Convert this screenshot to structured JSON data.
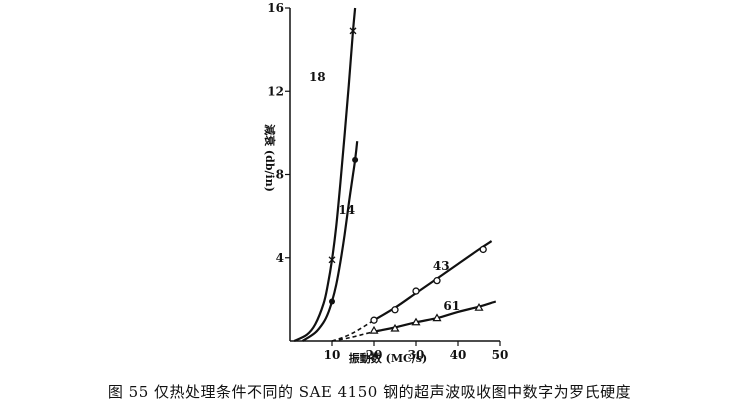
{
  "caption": "图 55  仅热处理条件不同的 SAE 4150 钢的超声波吸收图中数字为罗氏硬度",
  "chart_data": {
    "type": "line",
    "xlabel": "振動数 (MC/s)",
    "ylabel": "減衰 (db/in)",
    "xlim": [
      0,
      50
    ],
    "ylim": [
      0,
      16
    ],
    "x_ticks": [
      "10",
      "20",
      "30",
      "40",
      "50"
    ],
    "y_ticks": [
      "4",
      "8",
      "12",
      "16"
    ],
    "grid": false,
    "series": [
      {
        "name": "18",
        "marker": "x",
        "points": [
          [
            10,
            3.9
          ],
          [
            15,
            14.9
          ]
        ],
        "curve": [
          [
            1,
            0.0
          ],
          [
            4,
            0.3
          ],
          [
            6,
            0.8
          ],
          [
            8,
            1.8
          ],
          [
            9,
            2.7
          ],
          [
            10,
            3.9
          ],
          [
            11,
            5.5
          ],
          [
            12,
            7.6
          ],
          [
            13,
            9.9
          ],
          [
            14,
            12.3
          ],
          [
            15,
            14.9
          ],
          [
            15.5,
            16.0
          ]
        ]
      },
      {
        "name": "14",
        "marker": "filled-circle",
        "points": [
          [
            10,
            1.9
          ],
          [
            15.5,
            8.7
          ]
        ],
        "curve": [
          [
            3,
            0.0
          ],
          [
            6,
            0.4
          ],
          [
            8,
            0.9
          ],
          [
            9,
            1.3
          ],
          [
            10,
            1.9
          ],
          [
            11,
            2.7
          ],
          [
            12,
            3.8
          ],
          [
            13,
            5.1
          ],
          [
            14,
            6.6
          ],
          [
            15,
            8.0
          ],
          [
            15.5,
            8.7
          ],
          [
            16,
            9.6
          ]
        ]
      },
      {
        "name": "43",
        "marker": "open-circle",
        "points": [
          [
            20,
            1.0
          ],
          [
            25,
            1.5
          ],
          [
            30,
            2.4
          ],
          [
            35,
            2.9
          ],
          [
            46,
            4.4
          ]
        ],
        "curve": [
          [
            10,
            0.0
          ],
          [
            13,
            0.2
          ],
          [
            16,
            0.5
          ],
          [
            20,
            1.0
          ],
          [
            25,
            1.6
          ],
          [
            30,
            2.3
          ],
          [
            35,
            3.0
          ],
          [
            40,
            3.7
          ],
          [
            45,
            4.4
          ],
          [
            48,
            4.8
          ]
        ],
        "dashed_until_x": 20
      },
      {
        "name": "61",
        "marker": "triangle",
        "points": [
          [
            20,
            0.5
          ],
          [
            25,
            0.6
          ],
          [
            30,
            0.9
          ],
          [
            35,
            1.1
          ],
          [
            45,
            1.6
          ]
        ],
        "curve": [
          [
            10,
            0.0
          ],
          [
            14,
            0.15
          ],
          [
            18,
            0.35
          ],
          [
            20,
            0.45
          ],
          [
            25,
            0.65
          ],
          [
            30,
            0.9
          ],
          [
            35,
            1.1
          ],
          [
            40,
            1.4
          ],
          [
            45,
            1.65
          ],
          [
            49,
            1.9
          ]
        ],
        "dashed_until_x": 20
      }
    ],
    "annotations": [
      {
        "text": "18",
        "x": 6.5,
        "y": 12.5
      },
      {
        "text": "14",
        "x": 13.5,
        "y": 6.1
      },
      {
        "text": "43",
        "x": 36,
        "y": 3.4
      },
      {
        "text": "61",
        "x": 38.5,
        "y": 1.5
      }
    ]
  }
}
